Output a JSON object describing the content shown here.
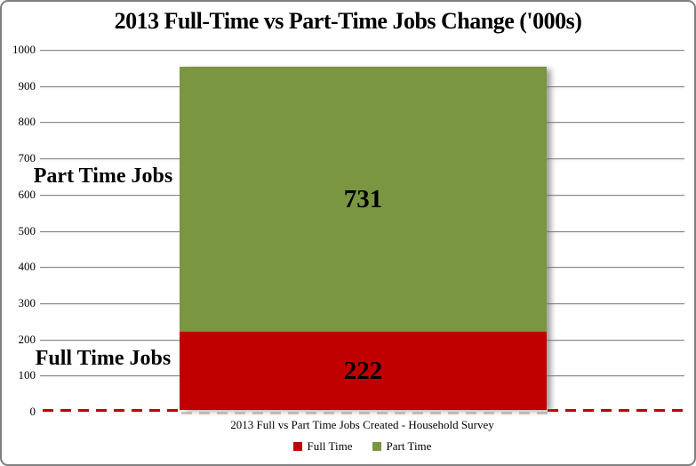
{
  "title": "2013 Full-Time vs Part-Time Jobs Change ('000s)",
  "caption": "2013 Full vs Part Time Jobs Created - Household Survey",
  "side_labels": {
    "part_time": "Part Time Jobs",
    "full_time": "Full Time Jobs"
  },
  "legend": {
    "items": [
      {
        "label": "Full Time",
        "color": "#C00000"
      },
      {
        "label": "Part Time",
        "color": "#7A9640"
      }
    ]
  },
  "colors": {
    "full_time_red": "#C00000",
    "part_time_green": "#7A9640",
    "gridline_gray": "#8A8A8A",
    "zero_line_red": "#C00000",
    "zero_line_shadow_gray": "#C9C9C9",
    "border_gray": "#7F7F7F",
    "text_black": "#000000"
  },
  "chart_data": {
    "type": "bar",
    "stacked": true,
    "title": "2013 Full-Time vs Part-Time Jobs Change ('000s)",
    "categories": [
      "2013"
    ],
    "series": [
      {
        "name": "Full Time",
        "values": [
          222
        ],
        "color": "#C00000"
      },
      {
        "name": "Part Time",
        "values": [
          731
        ],
        "color": "#7A9640"
      }
    ],
    "stack_total": 953,
    "data_labels": [
      222,
      731
    ],
    "ylim": [
      0,
      1000
    ],
    "yticks": [
      0,
      100,
      200,
      300,
      400,
      500,
      600,
      700,
      800,
      900,
      1000
    ],
    "grid": true,
    "zero_line_style": "dashed",
    "legend_position": "bottom",
    "annotations": [
      "Part Time Jobs",
      "Full Time Jobs"
    ]
  }
}
